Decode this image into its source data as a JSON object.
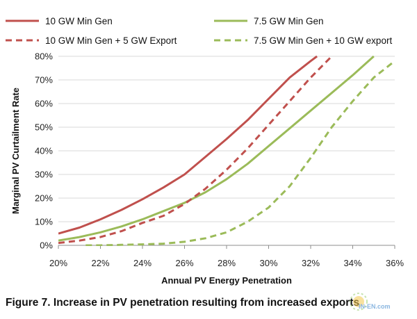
{
  "caption": "Figure 7. Increase in PV penetration resulting from increased exports",
  "watermark": {
    "text": "IN-EN.com"
  },
  "chart_data": {
    "type": "line",
    "title": "",
    "xlabel": "Annual PV Energy Penetration",
    "ylabel": "Marginal PV Curtailment Rate",
    "xlim": [
      20,
      36
    ],
    "ylim": [
      0,
      80
    ],
    "x_ticks": [
      20,
      22,
      24,
      26,
      28,
      30,
      32,
      34,
      36
    ],
    "y_ticks": [
      0,
      10,
      20,
      30,
      40,
      50,
      60,
      70,
      80
    ],
    "x_tick_labels": [
      "20%",
      "22%",
      "24%",
      "26%",
      "28%",
      "30%",
      "32%",
      "34%",
      "36%"
    ],
    "y_tick_labels": [
      "0%",
      "10%",
      "20%",
      "30%",
      "40%",
      "50%",
      "60%",
      "70%",
      "80%"
    ],
    "grid": "horizontal",
    "legend": "top, two columns",
    "series": [
      {
        "name": "10 GW Min Gen",
        "color": "#c0504d",
        "dash": "solid",
        "x": [
          20,
          21,
          22,
          23,
          24,
          25,
          26,
          27,
          28,
          29,
          30,
          31,
          32,
          32.3
        ],
        "y": [
          5,
          7.5,
          11,
          15,
          19.5,
          24.5,
          30,
          37.5,
          45,
          53,
          62,
          71,
          78,
          80
        ]
      },
      {
        "name": "7.5 GW Min Gen",
        "color": "#9bbb59",
        "dash": "solid",
        "x": [
          20,
          21,
          22,
          23,
          24,
          25,
          26,
          27,
          28,
          29,
          30,
          31,
          32,
          33,
          34,
          35
        ],
        "y": [
          2,
          3.5,
          5.5,
          8,
          11,
          14.5,
          18,
          22.5,
          28,
          34.5,
          42,
          49.5,
          57,
          64.5,
          72,
          80
        ]
      },
      {
        "name": "10 GW Min Gen + 5 GW Export",
        "color": "#c0504d",
        "dash": "dashed",
        "x": [
          20,
          21,
          22,
          23,
          24,
          25,
          26,
          27,
          28,
          29,
          30,
          31,
          32,
          33
        ],
        "y": [
          1,
          2,
          3.5,
          6,
          9.5,
          12.5,
          17.5,
          24,
          32,
          41,
          51,
          61,
          71,
          80
        ]
      },
      {
        "name": "7.5 GW Min Gen + 10 GW export",
        "color": "#9bbb59",
        "dash": "dashed",
        "x": [
          21.3,
          22,
          23,
          24,
          25,
          26,
          27,
          28,
          29,
          30,
          31,
          32,
          33,
          34,
          35,
          36
        ],
        "y": [
          0,
          0,
          0.2,
          0.4,
          0.7,
          1.5,
          3,
          5.5,
          10,
          16,
          25,
          37,
          50,
          61,
          71,
          78
        ]
      }
    ]
  }
}
